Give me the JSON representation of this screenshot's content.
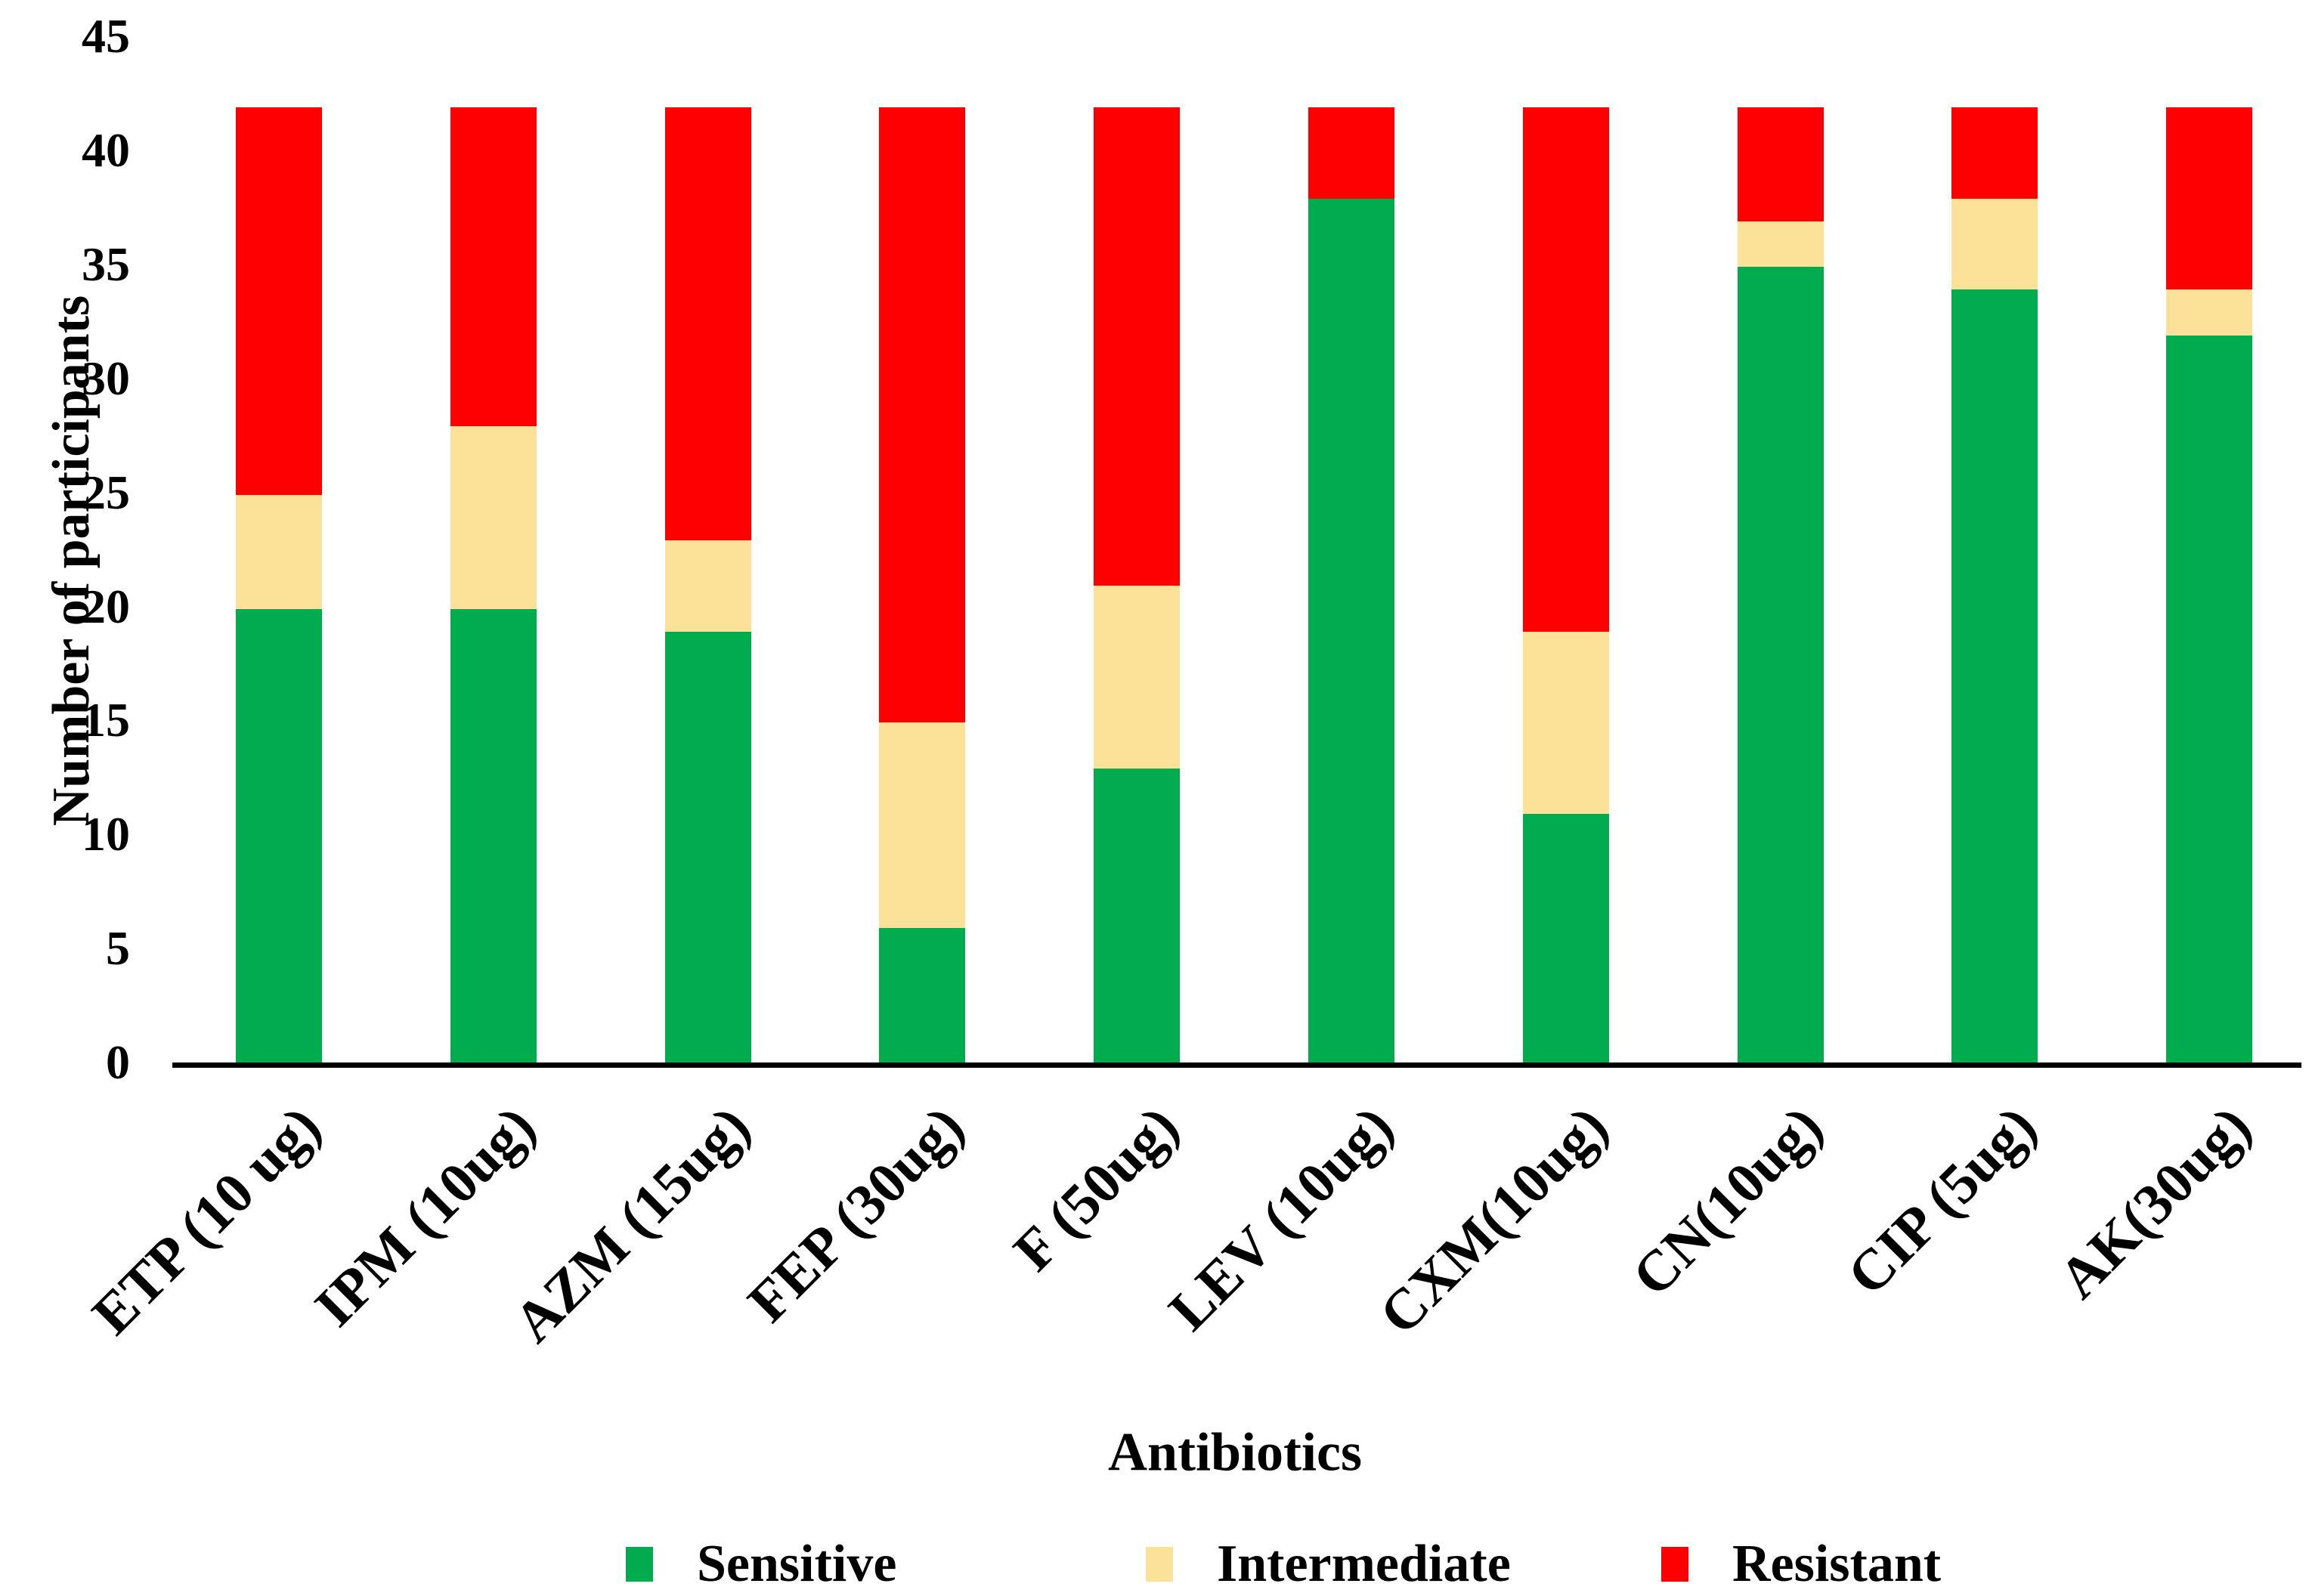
{
  "chart_data": {
    "type": "bar",
    "stacked": true,
    "orientation": "vertical",
    "xlabel": "Antibiotics",
    "ylabel": "Number of participants",
    "categories": [
      "ETP (10 ug)",
      "IPM (10ug)",
      "AZM (15ug)",
      "FEP (30ug)",
      "F (50ug)",
      "LEV (10ug)",
      "CXM(10ug)",
      "CN(10ug)",
      "CIP (5ug)",
      "AK(30ug)"
    ],
    "series": [
      {
        "name": "Sensitive",
        "color": "#00AC4E",
        "values": [
          20,
          20,
          19,
          6,
          13,
          38,
          11,
          35,
          34,
          32
        ]
      },
      {
        "name": "Intermediate",
        "color": "#FBE298",
        "values": [
          5,
          8,
          4,
          9,
          8,
          0,
          8,
          2,
          4,
          2
        ]
      },
      {
        "name": "Resistant",
        "color": "#FE0000",
        "values": [
          17,
          14,
          19,
          27,
          21,
          4,
          23,
          5,
          4,
          8
        ]
      }
    ],
    "bar_total": 42,
    "ylim": [
      0,
      45
    ],
    "yticks": [
      0,
      5,
      10,
      15,
      20,
      25,
      30,
      35,
      40,
      45
    ],
    "grid": false,
    "legend_position": "bottom"
  },
  "colors": {
    "axis": "#000000",
    "text": "#000000",
    "background": "#ffffff"
  }
}
